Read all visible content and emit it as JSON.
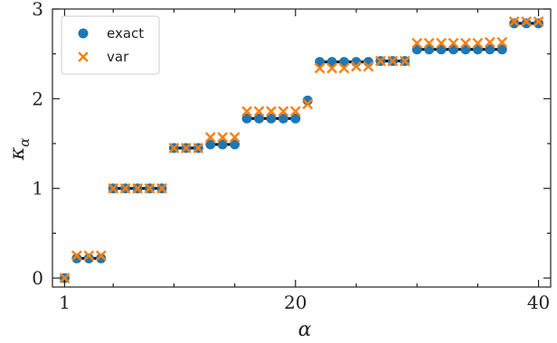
{
  "chart_data": {
    "type": "scatter",
    "xlabel": "α",
    "ylabel": "κ_α",
    "xlim": [
      0,
      41
    ],
    "ylim": [
      -0.1,
      3.0
    ],
    "x_ticks": [
      1,
      20,
      40
    ],
    "x_minor_ticks": [
      5,
      10,
      15,
      25,
      30,
      35
    ],
    "y_ticks": [
      0,
      1,
      2,
      3
    ],
    "y_minor_ticks": [
      0.5,
      1.5,
      2.5
    ],
    "grid": false,
    "legend_position": "top-left",
    "colors": {
      "exact": "#1f77b4",
      "var": "#ff7f0e",
      "level_line": "#000000"
    },
    "series": [
      {
        "name": "exact",
        "marker": "circle",
        "x": [
          1,
          2,
          3,
          4,
          5,
          6,
          7,
          8,
          9,
          10,
          11,
          12,
          13,
          14,
          15,
          16,
          17,
          18,
          19,
          20,
          21,
          22,
          23,
          24,
          25,
          26,
          27,
          28,
          29,
          30,
          31,
          32,
          33,
          34,
          35,
          36,
          37,
          38,
          39,
          40
        ],
        "y": [
          0.0,
          0.22,
          0.22,
          0.22,
          1.0,
          1.0,
          1.0,
          1.0,
          1.0,
          1.45,
          1.45,
          1.45,
          1.49,
          1.49,
          1.49,
          1.78,
          1.78,
          1.78,
          1.78,
          1.78,
          1.98,
          2.41,
          2.41,
          2.41,
          2.41,
          2.41,
          2.42,
          2.42,
          2.42,
          2.55,
          2.55,
          2.55,
          2.55,
          2.55,
          2.55,
          2.55,
          2.55,
          2.84,
          2.84,
          2.84
        ]
      },
      {
        "name": "var",
        "marker": "x",
        "x": [
          1,
          2,
          3,
          4,
          5,
          6,
          7,
          8,
          9,
          10,
          11,
          12,
          13,
          14,
          15,
          16,
          17,
          18,
          19,
          20,
          21,
          22,
          23,
          24,
          25,
          26,
          27,
          28,
          29,
          30,
          31,
          32,
          33,
          34,
          35,
          36,
          37,
          38,
          39,
          40
        ],
        "y": [
          0.0,
          0.25,
          0.25,
          0.25,
          1.0,
          1.0,
          1.0,
          1.0,
          1.0,
          1.45,
          1.45,
          1.45,
          1.57,
          1.57,
          1.57,
          1.86,
          1.86,
          1.86,
          1.86,
          1.86,
          1.94,
          2.34,
          2.34,
          2.34,
          2.36,
          2.36,
          2.42,
          2.42,
          2.42,
          2.62,
          2.62,
          2.62,
          2.62,
          2.62,
          2.62,
          2.63,
          2.63,
          2.86,
          2.86,
          2.86
        ]
      }
    ],
    "level_lines": [
      {
        "x_start": 2,
        "x_end": 4,
        "y": 0.22
      },
      {
        "x_start": 5,
        "x_end": 9,
        "y": 1.0
      },
      {
        "x_start": 10,
        "x_end": 12,
        "y": 1.45
      },
      {
        "x_start": 13,
        "x_end": 15,
        "y": 1.49
      },
      {
        "x_start": 16,
        "x_end": 20,
        "y": 1.78
      },
      {
        "x_start": 22,
        "x_end": 26,
        "y": 2.41
      },
      {
        "x_start": 27,
        "x_end": 29,
        "y": 2.42
      },
      {
        "x_start": 30,
        "x_end": 37,
        "y": 2.55
      },
      {
        "x_start": 38,
        "x_end": 40,
        "y": 2.84
      }
    ]
  }
}
